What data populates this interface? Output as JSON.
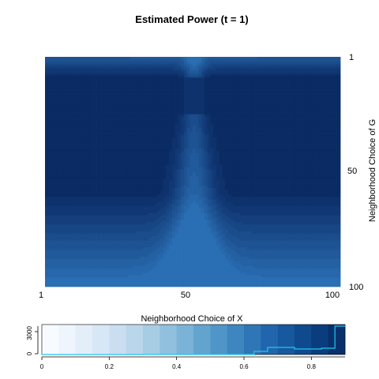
{
  "chart_data": [
    {
      "type": "heatmap",
      "title": "Estimated Power (t = 1)",
      "xlabel": "",
      "ylabel": "Neighborhood Choice of G",
      "x_range": [
        1,
        100
      ],
      "y_range": [
        1,
        100
      ],
      "y_reversed": true,
      "x_ticks": [
        "1",
        "50",
        "100"
      ],
      "y_ticks": [
        "1",
        "50",
        "100"
      ],
      "y_axis_side": "right",
      "x_peak": 51,
      "low_color": "#2a6eb3",
      "high_color": "#0b2b64",
      "row_band_top_end": 9,
      "row_band_bottom_start": 60,
      "peak_x_width": 3.5
    },
    {
      "type": "area",
      "title": "Neighborhood Choice of X",
      "xlim": [
        0,
        0.9
      ],
      "ylim": [
        0,
        3800
      ],
      "x_ticks": [
        "0",
        "0.2",
        "0.4",
        "0.6",
        "0.8"
      ],
      "y_ticks": [
        "0",
        "3000"
      ],
      "color_breaks": [
        0,
        0.05,
        0.1,
        0.15,
        0.2,
        0.25,
        0.3,
        0.35,
        0.4,
        0.45,
        0.5,
        0.55,
        0.6,
        0.65,
        0.7,
        0.75,
        0.8,
        0.85,
        0.9
      ],
      "colors": [
        "#f7fbff",
        "#eef5fc",
        "#e3eef9",
        "#d8e7f5",
        "#cbdef1",
        "#bad6eb",
        "#a6cde4",
        "#90c0de",
        "#7ab3d7",
        "#63a4cf",
        "#4f95c8",
        "#3d86bf",
        "#2e76b6",
        "#2166ac",
        "#17589f",
        "#0f4a8f",
        "#093d7e",
        "#08306b"
      ],
      "line_color": "#1ec8f0",
      "histogram_x": [
        0,
        0.6,
        0.63,
        0.67,
        0.75,
        0.83,
        0.87,
        0.9
      ],
      "histogram_y": [
        0,
        0,
        400,
        900,
        700,
        800,
        3600,
        3600
      ]
    }
  ]
}
